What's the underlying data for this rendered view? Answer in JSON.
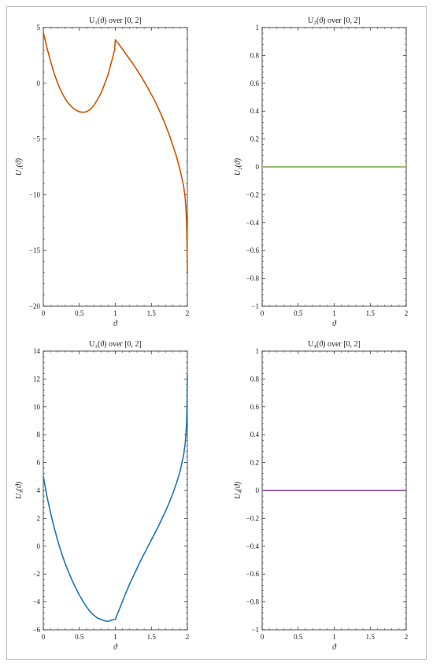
{
  "chart_data": [
    {
      "type": "line",
      "title": "U₁(ϑ) over [0, 2]",
      "xlabel": "ϑ",
      "ylabel": "U₁(ϑ)",
      "xlim": [
        0,
        2
      ],
      "ylim": [
        -20,
        5
      ],
      "xticks": [
        "0",
        "0.5",
        "1",
        "1.5",
        "2"
      ],
      "yticks": [
        "−20",
        "−15",
        "−10",
        "−5",
        "0",
        "5"
      ],
      "series": [
        {
          "color": "#d35400",
          "x": [
            0,
            0.05,
            0.1,
            0.15,
            0.2,
            0.25,
            0.3,
            0.35,
            0.4,
            0.45,
            0.5,
            0.55,
            0.6,
            0.65,
            0.7,
            0.75,
            0.8,
            0.85,
            0.9,
            0.95,
            0.99,
            1.0,
            1.05,
            1.1,
            1.15,
            1.2,
            1.25,
            1.3,
            1.35,
            1.4,
            1.45,
            1.5,
            1.55,
            1.6,
            1.65,
            1.7,
            1.75,
            1.8,
            1.85,
            1.9,
            1.95,
            1.97,
            1.98,
            1.99,
            1.995,
            2.0
          ],
          "y": [
            4.6,
            3.2,
            2.0,
            0.9,
            0.0,
            -0.75,
            -1.35,
            -1.8,
            -2.15,
            -2.4,
            -2.55,
            -2.6,
            -2.55,
            -2.35,
            -2.0,
            -1.5,
            -0.9,
            -0.1,
            0.8,
            2.0,
            3.0,
            3.9,
            3.5,
            3.05,
            2.6,
            2.15,
            1.7,
            1.2,
            0.7,
            0.15,
            -0.4,
            -1.0,
            -1.6,
            -2.3,
            -3.0,
            -3.8,
            -4.65,
            -5.6,
            -6.6,
            -7.8,
            -9.3,
            -10.3,
            -11.2,
            -12.8,
            -14.3,
            -17.0
          ]
        }
      ]
    },
    {
      "type": "line",
      "title": "U₂(ϑ) over [0, 2]",
      "xlabel": "ϑ",
      "ylabel": "U₂(ϑ)",
      "xlim": [
        0,
        2
      ],
      "ylim": [
        -1,
        1
      ],
      "xticks": [
        "0",
        "0.5",
        "1",
        "1.5",
        "2"
      ],
      "yticks": [
        "−1",
        "−0.8",
        "−0.6",
        "−0.4",
        "−0.2",
        "0",
        "0.2",
        "0.4",
        "0.6",
        "0.8",
        "1"
      ],
      "series": [
        {
          "color": "#77ab43",
          "x": [
            0,
            2
          ],
          "y": [
            0,
            0
          ]
        }
      ]
    },
    {
      "type": "line",
      "title": "U₃(ϑ) over [0, 2]",
      "xlabel": "ϑ",
      "ylabel": "U₃(ϑ)",
      "xlim": [
        0,
        2
      ],
      "ylim": [
        -6,
        14
      ],
      "xticks": [
        "0",
        "0.5",
        "1",
        "1.5",
        "2"
      ],
      "yticks": [
        "−6",
        "−4",
        "−2",
        "0",
        "2",
        "4",
        "6",
        "8",
        "10",
        "12",
        "14"
      ],
      "series": [
        {
          "color": "#1f77b4",
          "x": [
            0,
            0.05,
            0.1,
            0.15,
            0.2,
            0.25,
            0.3,
            0.35,
            0.4,
            0.45,
            0.5,
            0.55,
            0.6,
            0.65,
            0.7,
            0.75,
            0.8,
            0.85,
            0.9,
            0.95,
            1.0,
            1.05,
            1.1,
            1.15,
            1.2,
            1.25,
            1.3,
            1.35,
            1.4,
            1.45,
            1.5,
            1.55,
            1.6,
            1.65,
            1.7,
            1.75,
            1.8,
            1.85,
            1.9,
            1.95,
            1.97,
            1.98,
            1.99,
            1.995,
            2.0
          ],
          "y": [
            5.0,
            3.6,
            2.4,
            1.35,
            0.4,
            -0.45,
            -1.2,
            -1.85,
            -2.45,
            -3.0,
            -3.5,
            -3.95,
            -4.35,
            -4.7,
            -4.95,
            -5.15,
            -5.25,
            -5.35,
            -5.4,
            -5.3,
            -5.25,
            -4.6,
            -3.95,
            -3.3,
            -2.7,
            -2.15,
            -1.6,
            -1.05,
            -0.55,
            -0.05,
            0.45,
            0.95,
            1.45,
            2.0,
            2.55,
            3.15,
            3.8,
            4.55,
            5.4,
            6.6,
            7.4,
            8.0,
            9.0,
            10.0,
            12.3
          ]
        }
      ]
    },
    {
      "type": "line",
      "title": "U₄(ϑ) over [0, 2]",
      "xlabel": "ϑ",
      "ylabel": "U₄(ϑ)",
      "xlim": [
        0,
        2
      ],
      "ylim": [
        -1,
        1
      ],
      "xticks": [
        "0",
        "0.5",
        "1",
        "1.5",
        "2"
      ],
      "yticks": [
        "−1",
        "−0.8",
        "−0.6",
        "−0.4",
        "−0.2",
        "0",
        "0.2",
        "0.4",
        "0.6",
        "0.8",
        "1"
      ],
      "series": [
        {
          "color": "#7b3294",
          "x": [
            0,
            2
          ],
          "y": [
            0,
            0
          ]
        }
      ]
    }
  ]
}
